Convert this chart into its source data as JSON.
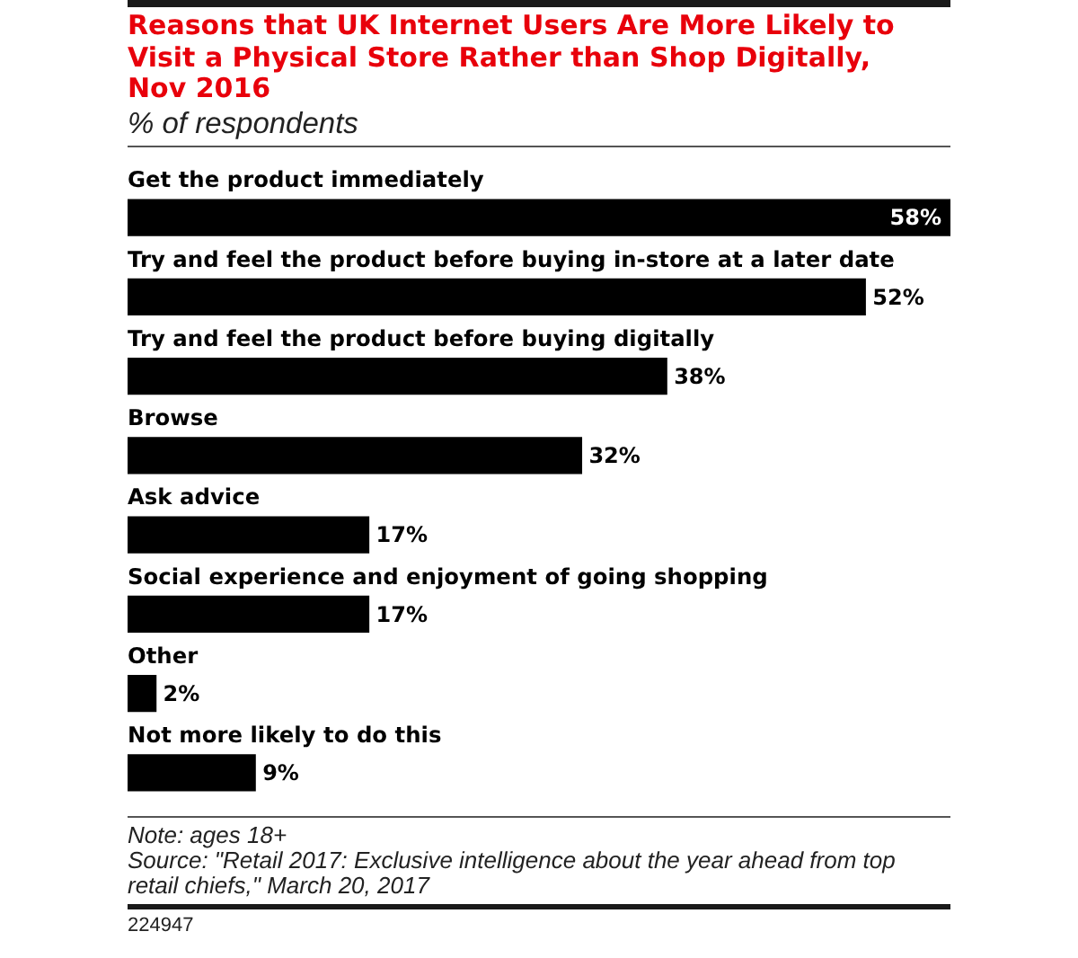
{
  "chart_data": {
    "type": "bar",
    "orientation": "horizontal",
    "title": "Reasons that UK Internet Users Are More Likely to Visit a Physical Store Rather than Shop Digitally, Nov 2016",
    "subtitle": "% of respondents",
    "categories": [
      "Get the product immediately",
      "Try and feel the product before buying in-store at a later date",
      "Try and feel the product before buying digitally",
      "Browse",
      "Ask advice",
      "Social experience and enjoyment of going shopping",
      "Other",
      "Not more likely to do this"
    ],
    "values": [
      58,
      52,
      38,
      32,
      17,
      17,
      2,
      9
    ],
    "value_labels": [
      "58%",
      "52%",
      "38%",
      "32%",
      "17%",
      "17%",
      "2%",
      "9%"
    ],
    "color": "#000000",
    "xlim": [
      0,
      58
    ],
    "tick_labels": "y",
    "grid": false,
    "legend": false,
    "annotations": [
      "Note: ages 18+",
      "Source: \"Retail 2017: Exclusive intelligence about the year ahead from top retail chiefs,\" March 20, 2017",
      "224947"
    ]
  }
}
